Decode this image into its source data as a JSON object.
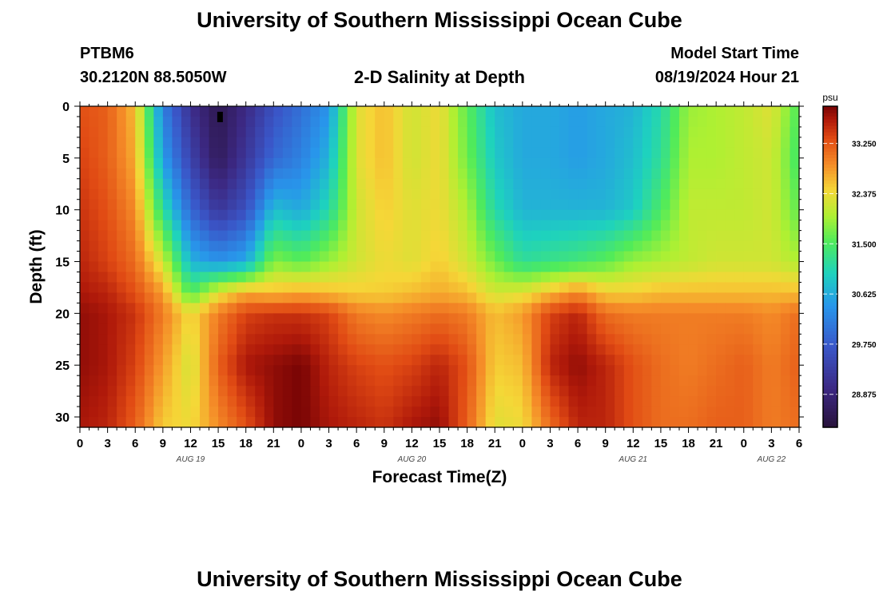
{
  "header": {
    "title": "University of Southern Mississippi Ocean Cube",
    "station": "PTBM6",
    "coords": "30.2120N  88.5050W",
    "subtitle": "2-D Salinity at Depth",
    "start_label": "Model Start Time",
    "start_value": "08/19/2024 Hour 21",
    "footer_title": "University of Southern Mississippi Ocean Cube"
  },
  "chart_data": {
    "type": "heatmap",
    "title": "2-D Salinity at Depth",
    "xlabel": "Forecast Time(Z)",
    "ylabel": "Depth (ft)",
    "x_unit": "hours since 08/19 00Z",
    "xlim": [
      0,
      78
    ],
    "ylim": [
      31,
      0
    ],
    "x_ticks": [
      0,
      3,
      6,
      9,
      12,
      15,
      18,
      21,
      24,
      27,
      30,
      33,
      36,
      39,
      42,
      45,
      48,
      51,
      54,
      57,
      60,
      63,
      66,
      69,
      72,
      75,
      78
    ],
    "x_tick_labels": [
      "0",
      "3",
      "6",
      "9",
      "12",
      "15",
      "18",
      "21",
      "0",
      "3",
      "6",
      "9",
      "12",
      "15",
      "18",
      "21",
      "0",
      "3",
      "6",
      "9",
      "12",
      "15",
      "18",
      "21",
      "0",
      "3",
      "6"
    ],
    "y_ticks": [
      0,
      5,
      10,
      15,
      20,
      25,
      30
    ],
    "date_labels": [
      {
        "label": "AUG 19",
        "x": 12
      },
      {
        "label": "AUG 20",
        "x": 36
      },
      {
        "label": "AUG 21",
        "x": 60
      },
      {
        "label": "AUG 22",
        "x": 75
      }
    ],
    "marker": {
      "x": 15.2,
      "y": 1
    },
    "colorbar": {
      "unit": "psu",
      "min": 28.3,
      "max": 33.9,
      "ticks": [
        28.875,
        29.75,
        30.625,
        31.5,
        32.375,
        33.25
      ],
      "tick_labels": [
        "28.875",
        "29.750",
        "30.625",
        "31.500",
        "32.375",
        "33.250"
      ]
    },
    "grid": {
      "x": [
        0,
        3,
        6,
        9,
        12,
        15,
        18,
        21,
        24,
        27,
        30,
        33,
        36,
        39,
        42,
        45,
        48,
        51,
        54,
        57,
        60,
        63,
        66,
        69,
        72,
        75,
        78
      ],
      "y": [
        0,
        5,
        10,
        15,
        18,
        20,
        25,
        31
      ],
      "values": [
        [
          33.3,
          33.2,
          32.6,
          30.2,
          29.1,
          28.5,
          29.0,
          29.6,
          30.0,
          30.4,
          32.3,
          32.6,
          32.2,
          32.4,
          31.6,
          30.8,
          30.6,
          30.6,
          30.5,
          30.6,
          30.7,
          31.1,
          31.9,
          32.0,
          32.1,
          32.3,
          31.5
        ],
        [
          33.4,
          33.2,
          32.7,
          30.5,
          29.4,
          28.6,
          29.2,
          29.9,
          30.2,
          30.7,
          32.3,
          32.6,
          32.2,
          32.4,
          31.7,
          30.9,
          30.6,
          30.6,
          30.5,
          30.6,
          30.8,
          31.2,
          32.0,
          32.0,
          32.1,
          32.2,
          31.4
        ],
        [
          33.5,
          33.3,
          32.9,
          31.2,
          29.9,
          29.2,
          29.6,
          30.8,
          30.6,
          31.1,
          32.2,
          32.5,
          32.3,
          32.4,
          32.0,
          31.1,
          30.7,
          30.7,
          30.7,
          30.7,
          30.9,
          31.5,
          32.1,
          32.1,
          32.1,
          32.2,
          31.6
        ],
        [
          33.6,
          33.4,
          33.1,
          32.2,
          30.7,
          30.4,
          30.6,
          31.8,
          31.6,
          31.9,
          32.2,
          32.4,
          32.3,
          32.5,
          32.2,
          31.7,
          31.2,
          31.3,
          31.4,
          31.6,
          31.9,
          32.0,
          32.1,
          32.2,
          32.2,
          32.2,
          32.0
        ],
        [
          33.7,
          33.6,
          33.3,
          32.8,
          31.5,
          32.3,
          32.7,
          32.6,
          32.7,
          32.6,
          32.5,
          32.5,
          32.6,
          32.7,
          32.6,
          32.2,
          32.3,
          32.6,
          32.9,
          32.5,
          32.5,
          32.6,
          32.6,
          32.6,
          32.6,
          32.6,
          32.6
        ],
        [
          33.8,
          33.7,
          33.5,
          33.0,
          32.4,
          33.0,
          33.4,
          33.5,
          33.5,
          33.4,
          33.0,
          32.9,
          33.0,
          33.1,
          33.0,
          32.6,
          32.8,
          33.4,
          33.6,
          33.1,
          33.0,
          33.0,
          33.0,
          33.0,
          33.0,
          32.9,
          33.1
        ],
        [
          33.8,
          33.7,
          33.4,
          32.8,
          32.2,
          33.2,
          33.7,
          33.8,
          33.9,
          33.6,
          33.4,
          33.3,
          33.4,
          33.6,
          33.3,
          32.5,
          32.6,
          33.6,
          33.8,
          33.6,
          33.3,
          33.1,
          33.0,
          33.1,
          33.2,
          33.0,
          33.2
        ],
        [
          33.7,
          33.6,
          33.2,
          32.5,
          32.4,
          32.9,
          33.3,
          33.8,
          33.9,
          33.7,
          33.6,
          33.5,
          33.7,
          33.8,
          33.2,
          32.3,
          32.4,
          33.1,
          33.6,
          33.6,
          33.3,
          33.1,
          33.1,
          33.2,
          33.2,
          33.0,
          33.1
        ]
      ]
    }
  }
}
